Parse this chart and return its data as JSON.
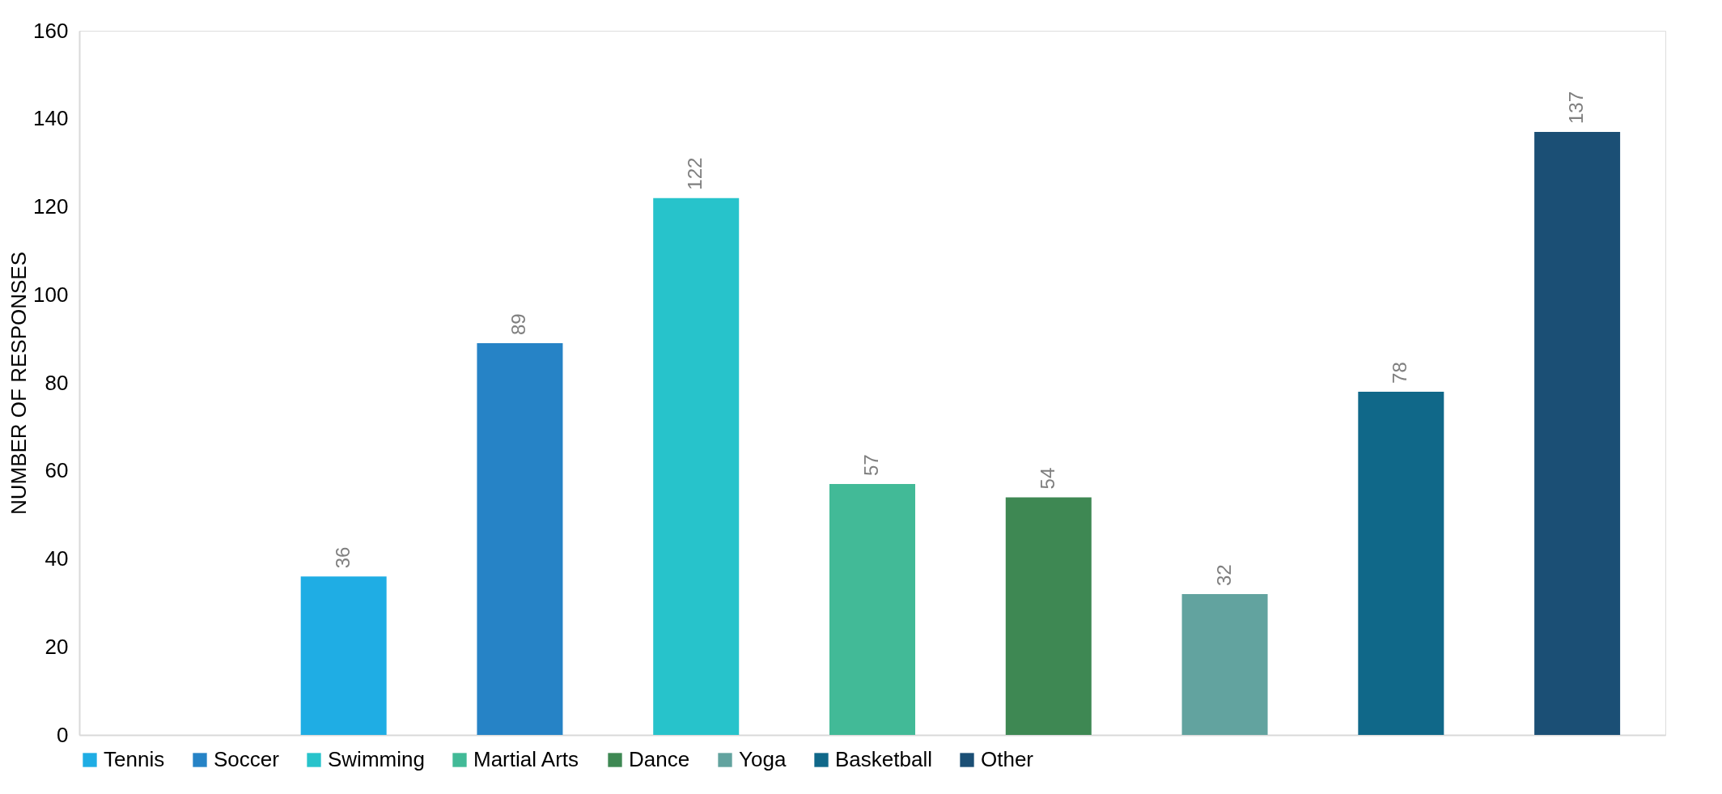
{
  "chart_data": {
    "type": "bar",
    "ylabel": "NUMBER OF RESPONSES",
    "categories": [
      null,
      null,
      null,
      null,
      null,
      null,
      null,
      null,
      null
    ],
    "series": [
      {
        "name": "Tennis",
        "color": "#1fade4",
        "values": [
          null,
          36,
          null,
          null,
          null,
          null,
          null,
          null,
          null
        ]
      },
      {
        "name": "Soccer",
        "color": "#2683c6",
        "values": [
          null,
          null,
          89,
          null,
          null,
          null,
          null,
          null,
          null
        ]
      },
      {
        "name": "Swimming",
        "color": "#27c3cb",
        "values": [
          null,
          null,
          null,
          122,
          null,
          null,
          null,
          null,
          null
        ]
      },
      {
        "name": "Martial Arts",
        "color": "#42ba97",
        "values": [
          null,
          null,
          null,
          null,
          57,
          null,
          null,
          null,
          null
        ]
      },
      {
        "name": "Dance",
        "color": "#3e8853",
        "values": [
          null,
          null,
          null,
          null,
          null,
          54,
          null,
          null,
          null
        ]
      },
      {
        "name": "Yoga",
        "color": "#62a39f",
        "values": [
          null,
          null,
          null,
          null,
          null,
          null,
          32,
          null,
          null
        ]
      },
      {
        "name": "Basketball",
        "color": "#106889",
        "values": [
          null,
          null,
          null,
          null,
          null,
          null,
          null,
          78,
          null
        ]
      },
      {
        "name": "Other",
        "color": "#1b4f75",
        "values": [
          null,
          null,
          null,
          null,
          null,
          null,
          null,
          null,
          137
        ]
      }
    ],
    "ylim": [
      0,
      160
    ],
    "yticks": [
      0,
      20,
      40,
      60,
      80,
      100,
      120,
      140,
      160
    ],
    "grid": false,
    "legend": "bottom",
    "data_labels": true
  }
}
